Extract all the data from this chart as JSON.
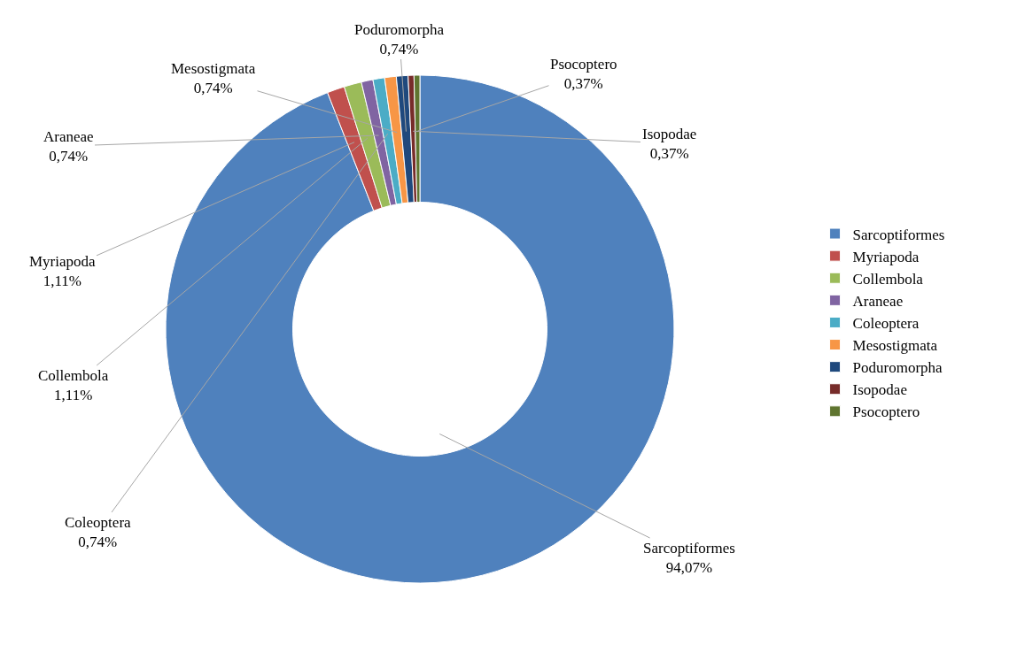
{
  "chart_data": {
    "type": "donut",
    "categories": [
      "Sarcoptiformes",
      "Myriapoda",
      "Collembola",
      "Araneae",
      "Coleoptera",
      "Mesostigmata",
      "Poduromorpha",
      "Isopodae",
      "Psocoptero"
    ],
    "values": [
      94.07,
      1.11,
      1.11,
      0.74,
      0.74,
      0.74,
      0.74,
      0.37,
      0.37
    ],
    "value_labels": [
      "94,07%",
      "1,11%",
      "1,11%",
      "0,74%",
      "0,74%",
      "0,74%",
      "0,74%",
      "0,37%",
      "0,37%"
    ],
    "colors": [
      "#4f81bd",
      "#c0504d",
      "#9bbb59",
      "#8064a2",
      "#4bacc6",
      "#f79646",
      "#1f497d",
      "#772c2a",
      "#5f7530"
    ],
    "legend": "right"
  }
}
